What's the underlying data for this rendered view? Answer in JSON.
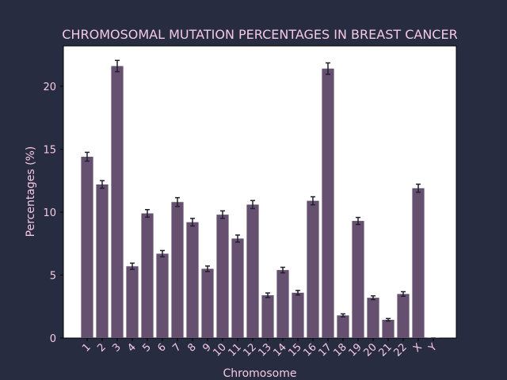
{
  "chart_data": {
    "type": "bar",
    "title": "CHROMOSOMAL MUTATION PERCENTAGES IN BREAST CANCER",
    "xlabel": "Chromosome",
    "ylabel": "Percentages (%)",
    "categories": [
      "1",
      "2",
      "3",
      "4",
      "5",
      "6",
      "7",
      "8",
      "9",
      "10",
      "11",
      "12",
      "13",
      "14",
      "15",
      "16",
      "17",
      "18",
      "19",
      "20",
      "21",
      "22",
      "X",
      "Y"
    ],
    "values": [
      14.4,
      12.2,
      21.6,
      5.7,
      9.9,
      6.7,
      10.8,
      9.2,
      5.5,
      9.8,
      7.9,
      10.6,
      3.4,
      5.4,
      3.6,
      10.9,
      21.4,
      1.8,
      9.3,
      3.2,
      1.45,
      3.5,
      11.9,
      0.02
    ],
    "errors": [
      0.35,
      0.3,
      0.45,
      0.25,
      0.3,
      0.25,
      0.35,
      0.3,
      0.22,
      0.3,
      0.28,
      0.32,
      0.18,
      0.22,
      0.18,
      0.32,
      0.45,
      0.12,
      0.28,
      0.15,
      0.1,
      0.18,
      0.32,
      0.0
    ],
    "ylim": [
      0,
      23.2
    ],
    "yticks": [
      0,
      5,
      10,
      15,
      20
    ],
    "grid": false,
    "colors": {
      "background": "#282c40",
      "plot_area": "#ffffff",
      "bar": "#65516f",
      "error_bar": "#1f1f2e",
      "text": "#f5c9e3",
      "axis": "#000000"
    }
  }
}
